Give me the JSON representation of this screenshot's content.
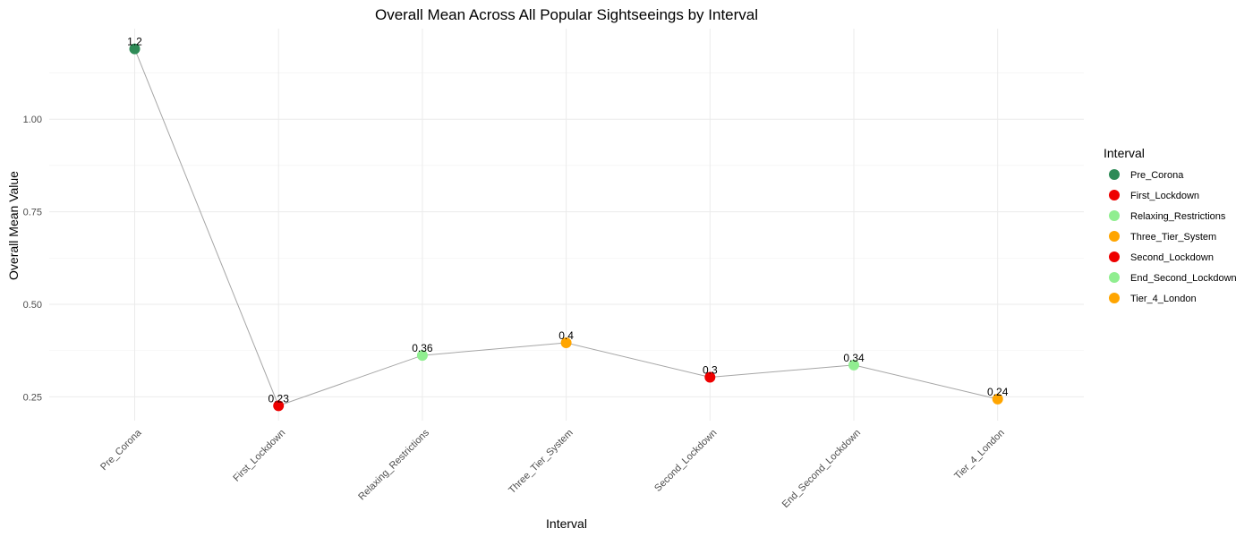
{
  "chart_data": {
    "type": "line",
    "title": "Overall Mean Across All Popular Sightseeings by Interval",
    "xlabel": "Interval",
    "ylabel": "Overall Mean Value",
    "categories": [
      "Pre_Corona",
      "First_Lockdown",
      "Relaxing_Restrictions",
      "Three_Tier_System",
      "Second_Lockdown",
      "End_Second_Lockdown",
      "Tier_4_London"
    ],
    "values": [
      1.19,
      0.226,
      0.362,
      0.396,
      0.303,
      0.336,
      0.244
    ],
    "data_labels": [
      "1.2",
      "0.23",
      "0.36",
      "0.4",
      "0.3",
      "0.34",
      "0.24"
    ],
    "point_colors": [
      "#2e8b57",
      "#ee0000",
      "#90ee90",
      "#ffa500",
      "#ee0000",
      "#90ee90",
      "#ffa500"
    ],
    "line_color": "#a6a6a6",
    "y_ticks": [
      0.25,
      0.5,
      0.75,
      1.0
    ],
    "y_tick_labels": [
      "0.25",
      "0.50",
      "0.75",
      "1.00"
    ],
    "ylim": [
      0.2,
      1.2
    ],
    "grid": true,
    "legend": {
      "title": "Interval",
      "position": "right",
      "entries": [
        "Pre_Corona",
        "First_Lockdown",
        "Relaxing_Restrictions",
        "Three_Tier_System",
        "Second_Lockdown",
        "End_Second_Lockdown",
        "Tier_4_London"
      ]
    }
  }
}
